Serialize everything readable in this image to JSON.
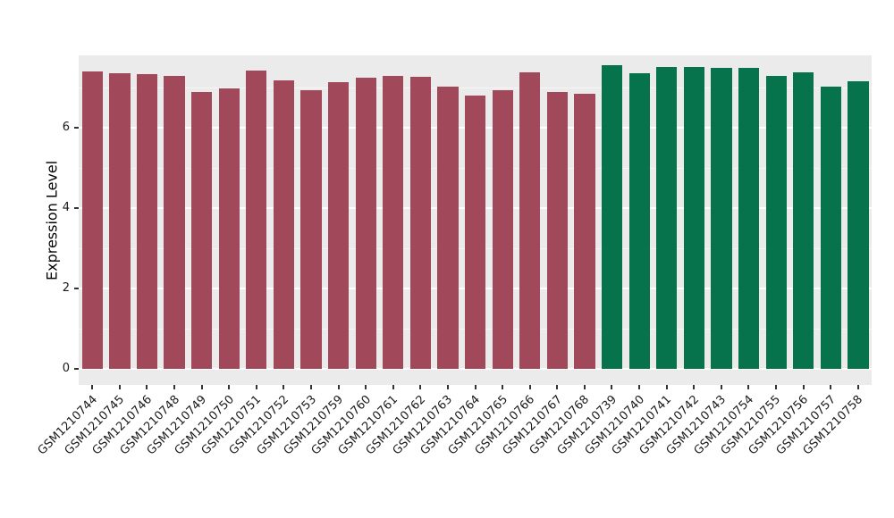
{
  "chart_data": {
    "type": "bar",
    "title": "",
    "xlabel": "",
    "ylabel": "Expression Level",
    "ylim": [
      0,
      7.8
    ],
    "yticks": [
      0,
      2,
      4,
      6
    ],
    "yminor": [
      1,
      3,
      5,
      7
    ],
    "legend": "none",
    "panel_background": "#EBEBEB",
    "grid_color": "#FFFFFF",
    "axis_text_color": "#1a1a1a",
    "groups": {
      "group_a": {
        "color": "#A1495A"
      },
      "group_b": {
        "color": "#07734D"
      }
    },
    "bars": [
      {
        "label": "GSM1210744",
        "value": 7.4,
        "group": "group_a"
      },
      {
        "label": "GSM1210745",
        "value": 7.35,
        "group": "group_a"
      },
      {
        "label": "GSM1210746",
        "value": 7.33,
        "group": "group_a"
      },
      {
        "label": "GSM1210748",
        "value": 7.3,
        "group": "group_a"
      },
      {
        "label": "GSM1210749",
        "value": 6.88,
        "group": "group_a"
      },
      {
        "label": "GSM1210750",
        "value": 6.98,
        "group": "group_a"
      },
      {
        "label": "GSM1210751",
        "value": 7.42,
        "group": "group_a"
      },
      {
        "label": "GSM1210752",
        "value": 7.18,
        "group": "group_a"
      },
      {
        "label": "GSM1210753",
        "value": 6.93,
        "group": "group_a"
      },
      {
        "label": "GSM1210759",
        "value": 7.13,
        "group": "group_a"
      },
      {
        "label": "GSM1210760",
        "value": 7.25,
        "group": "group_a"
      },
      {
        "label": "GSM1210761",
        "value": 7.28,
        "group": "group_a"
      },
      {
        "label": "GSM1210762",
        "value": 7.27,
        "group": "group_a"
      },
      {
        "label": "GSM1210763",
        "value": 7.02,
        "group": "group_a"
      },
      {
        "label": "GSM1210764",
        "value": 6.8,
        "group": "group_a"
      },
      {
        "label": "GSM1210765",
        "value": 6.93,
        "group": "group_a"
      },
      {
        "label": "GSM1210766",
        "value": 7.38,
        "group": "group_a"
      },
      {
        "label": "GSM1210767",
        "value": 6.88,
        "group": "group_a"
      },
      {
        "label": "GSM1210768",
        "value": 6.85,
        "group": "group_a"
      },
      {
        "label": "GSM1210739",
        "value": 7.55,
        "group": "group_b"
      },
      {
        "label": "GSM1210740",
        "value": 7.35,
        "group": "group_b"
      },
      {
        "label": "GSM1210741",
        "value": 7.52,
        "group": "group_b"
      },
      {
        "label": "GSM1210742",
        "value": 7.52,
        "group": "group_b"
      },
      {
        "label": "GSM1210743",
        "value": 7.48,
        "group": "group_b"
      },
      {
        "label": "GSM1210754",
        "value": 7.5,
        "group": "group_b"
      },
      {
        "label": "GSM1210755",
        "value": 7.3,
        "group": "group_b"
      },
      {
        "label": "GSM1210756",
        "value": 7.38,
        "group": "group_b"
      },
      {
        "label": "GSM1210757",
        "value": 7.02,
        "group": "group_b"
      },
      {
        "label": "GSM1210758",
        "value": 7.15,
        "group": "group_b"
      }
    ]
  }
}
